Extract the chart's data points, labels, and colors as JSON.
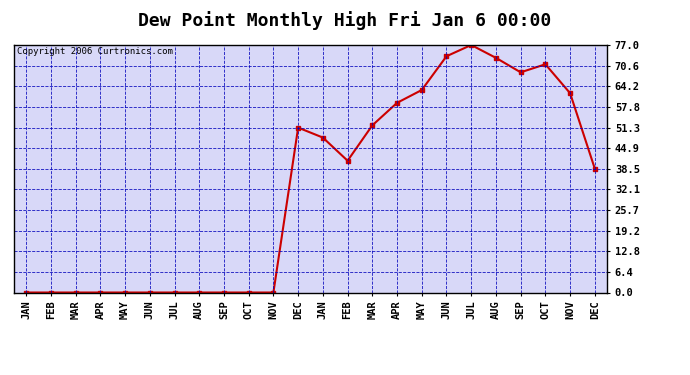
{
  "title": "Dew Point Monthly High Fri Jan 6 00:00",
  "copyright": "Copyright 2006 Curtronics.com",
  "x_labels": [
    "JAN",
    "FEB",
    "MAR",
    "APR",
    "MAY",
    "JUN",
    "JUL",
    "AUG",
    "SEP",
    "OCT",
    "NOV",
    "DEC",
    "JAN",
    "FEB",
    "MAR",
    "APR",
    "MAY",
    "JUN",
    "JUL",
    "AUG",
    "SEP",
    "OCT",
    "NOV",
    "DEC"
  ],
  "y_values": [
    0.0,
    0.0,
    0.0,
    0.0,
    0.0,
    0.0,
    0.0,
    0.0,
    0.0,
    0.0,
    0.0,
    51.3,
    48.2,
    41.0,
    52.0,
    59.0,
    63.0,
    73.5,
    77.0,
    73.0,
    68.5,
    71.0,
    62.0,
    38.5
  ],
  "line_color": "#cc0000",
  "marker": "s",
  "marker_size": 3,
  "grid_color": "#0000bb",
  "grid_style": "--",
  "bg_color": "#ffffff",
  "plot_bg_color": "#d8d8f8",
  "y_ticks": [
    0.0,
    6.4,
    12.8,
    19.2,
    25.7,
    32.1,
    38.5,
    44.9,
    51.3,
    57.8,
    64.2,
    70.6,
    77.0
  ],
  "ylim": [
    0.0,
    77.0
  ],
  "title_fontsize": 13,
  "tick_fontsize": 7.5,
  "copyright_fontsize": 6.5
}
